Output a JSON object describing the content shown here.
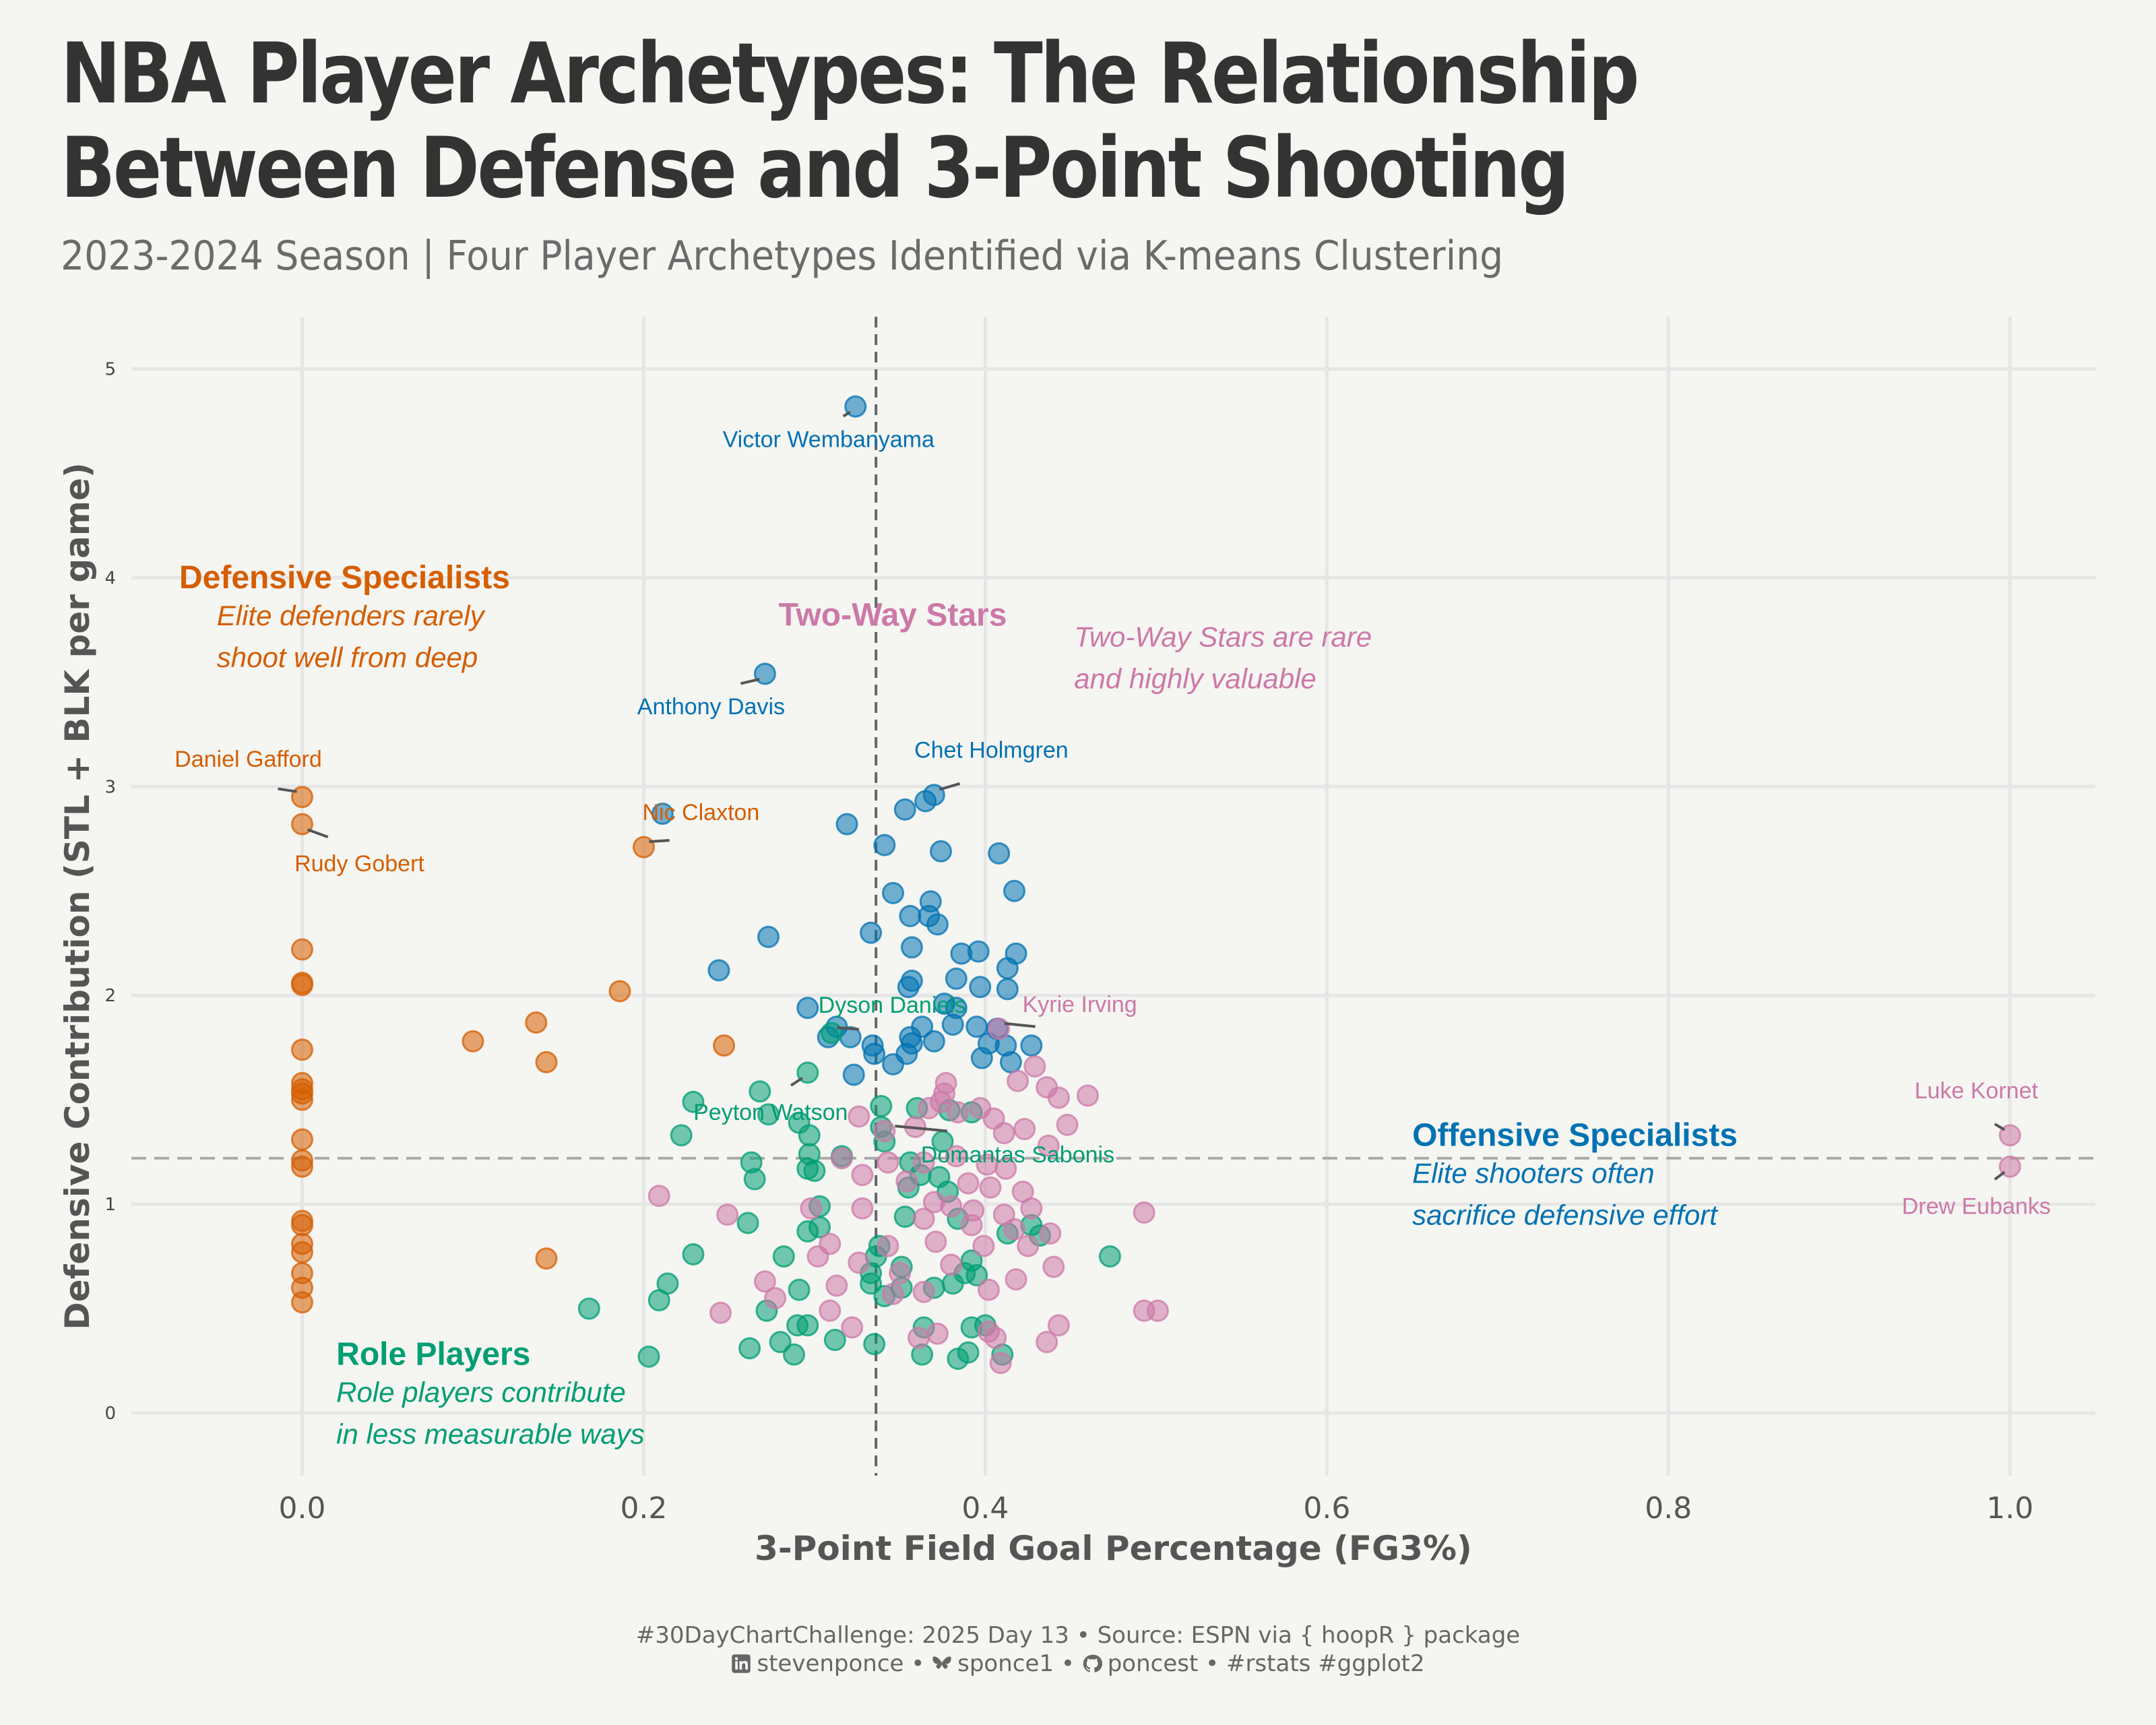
{
  "title": "NBA Player Archetypes: The Relationship Between Defense and 3-Point Shooting",
  "subtitle": "2023-2024 Season | Four Player Archetypes Identified via K-means Clustering",
  "caption": {
    "line1": "#30DayChartChallenge: 2025 Day 13 • Source: ESPN via { hoopR } package",
    "linkedin": "stevenponce",
    "bluesky": "sponce1",
    "github": "poncest",
    "tags": "#rstats #ggplot2",
    "separator": " • "
  },
  "colors": {
    "background": "#f5f5f2",
    "Defensive Specialists": "#d55e00",
    "Two-Way Stars": "#cc79a7",
    "Offensive Specialists": "#0072b2",
    "Role Players": "#009e73",
    "grid": "#e6e6e6",
    "reference_line": "#666666"
  },
  "chart_data": {
    "type": "scatter",
    "xlabel": "3-Point Field Goal Percentage (FG3%)",
    "ylabel": "Defensive Contribution (STL + BLK per game)",
    "xlim": [
      -0.1,
      1.05
    ],
    "ylim": [
      -0.3,
      5.25
    ],
    "x_ticks": [
      "0.0",
      "0.2",
      "0.4",
      "0.6",
      "0.8",
      "1.0"
    ],
    "y_ticks": [
      "0",
      "1",
      "2",
      "3",
      "4",
      "5"
    ],
    "x_tick_values": [
      0,
      0.2,
      0.4,
      0.6,
      0.8,
      1.0
    ],
    "y_tick_values": [
      0,
      1,
      2,
      3,
      4,
      5
    ],
    "grid": true,
    "legend": "none",
    "reference_lines": [
      {
        "axis": "x",
        "value": 0.336,
        "style": "dashed"
      },
      {
        "axis": "y",
        "value": 1.22,
        "style": "dashed"
      }
    ],
    "cluster_labels": [
      {
        "cluster": "Defensive Specialists",
        "title": "Defensive Specialists",
        "note1": "Elite defenders rarely",
        "note2": "shoot well from deep"
      },
      {
        "cluster": "Two-Way Stars",
        "title": "Two-Way Stars",
        "note1": "Two-Way Stars are rare",
        "note2": "and highly valuable"
      },
      {
        "cluster": "Offensive Specialists",
        "title": "Offensive Specialists",
        "note1": "Elite shooters often",
        "note2": "sacrifice defensive effort"
      },
      {
        "cluster": "Role Players",
        "title": "Role Players",
        "note1": "Role players contribute",
        "note2": "in less measurable ways"
      }
    ],
    "player_labels": [
      {
        "name": "Victor Wembanyama",
        "x": 0.324,
        "y": 4.82,
        "cluster": "Offensive Specialists"
      },
      {
        "name": "Anthony Davis",
        "x": 0.271,
        "y": 3.54,
        "cluster": "Offensive Specialists"
      },
      {
        "name": "Chet Holmgren",
        "x": 0.37,
        "y": 2.96,
        "cluster": "Offensive Specialists"
      },
      {
        "name": "Daniel Gafford",
        "x": 0.0,
        "y": 2.95,
        "cluster": "Defensive Specialists"
      },
      {
        "name": "Rudy Gobert",
        "x": 0.0,
        "y": 2.82,
        "cluster": "Defensive Specialists"
      },
      {
        "name": "Nic Claxton",
        "x": 0.2,
        "y": 2.71,
        "cluster": "Defensive Specialists"
      },
      {
        "name": "Dyson Daniels",
        "x": 0.31,
        "y": 1.82,
        "cluster": "Role Players"
      },
      {
        "name": "Kyrie Irving",
        "x": 0.408,
        "y": 1.84,
        "cluster": "Two-Way Stars"
      },
      {
        "name": "Peyton Watson",
        "x": 0.296,
        "y": 1.63,
        "cluster": "Role Players"
      },
      {
        "name": "Domantas Sabonis",
        "x": 0.344,
        "y": 1.4,
        "cluster": "Role Players"
      },
      {
        "name": "Luke Kornet",
        "x": 1.0,
        "y": 1.33,
        "cluster": "Two-Way Stars"
      },
      {
        "name": "Drew Eubanks",
        "x": 1.0,
        "y": 1.18,
        "cluster": "Two-Way Stars"
      }
    ],
    "series": [
      {
        "name": "Defensive Specialists",
        "points": [
          [
            0,
            2.95
          ],
          [
            0,
            2.82
          ],
          [
            0.2,
            2.71
          ],
          [
            0,
            2.22
          ],
          [
            0,
            2.06
          ],
          [
            0,
            2.05
          ],
          [
            0.186,
            2.02
          ],
          [
            0.137,
            1.87
          ],
          [
            0.1,
            1.78
          ],
          [
            0.247,
            1.76
          ],
          [
            0,
            1.74
          ],
          [
            0.143,
            1.68
          ],
          [
            0,
            1.58
          ],
          [
            0,
            1.55
          ],
          [
            0,
            1.53
          ],
          [
            0,
            1.5
          ],
          [
            0,
            1.31
          ],
          [
            0,
            1.21
          ],
          [
            0,
            1.18
          ],
          [
            0,
            0.92
          ],
          [
            0,
            0.9
          ],
          [
            0,
            0.81
          ],
          [
            0,
            0.77
          ],
          [
            0.143,
            0.74
          ],
          [
            0,
            0.67
          ],
          [
            0,
            0.6
          ],
          [
            0,
            0.53
          ]
        ]
      },
      {
        "name": "Offensive Specialists",
        "points": [
          [
            0.324,
            4.82
          ],
          [
            0.271,
            3.54
          ],
          [
            0.211,
            2.87
          ],
          [
            0.37,
            2.96
          ],
          [
            0.353,
            2.89
          ],
          [
            0.365,
            2.93
          ],
          [
            0.319,
            2.82
          ],
          [
            0.341,
            2.72
          ],
          [
            0.374,
            2.69
          ],
          [
            0.408,
            2.68
          ],
          [
            0.417,
            2.5
          ],
          [
            0.346,
            2.49
          ],
          [
            0.368,
            2.45
          ],
          [
            0.356,
            2.38
          ],
          [
            0.367,
            2.38
          ],
          [
            0.372,
            2.34
          ],
          [
            0.333,
            2.3
          ],
          [
            0.273,
            2.28
          ],
          [
            0.357,
            2.23
          ],
          [
            0.386,
            2.2
          ],
          [
            0.396,
            2.21
          ],
          [
            0.418,
            2.2
          ],
          [
            0.413,
            2.13
          ],
          [
            0.244,
            2.12
          ],
          [
            0.357,
            2.07
          ],
          [
            0.383,
            2.08
          ],
          [
            0.355,
            2.04
          ],
          [
            0.397,
            2.04
          ],
          [
            0.413,
            2.03
          ],
          [
            0.296,
            1.94
          ],
          [
            0.376,
            1.96
          ],
          [
            0.383,
            1.94
          ],
          [
            0.313,
            1.85
          ],
          [
            0.363,
            1.85
          ],
          [
            0.381,
            1.86
          ],
          [
            0.395,
            1.85
          ],
          [
            0.407,
            1.84
          ],
          [
            0.308,
            1.8
          ],
          [
            0.321,
            1.8
          ],
          [
            0.356,
            1.8
          ],
          [
            0.357,
            1.77
          ],
          [
            0.37,
            1.78
          ],
          [
            0.402,
            1.77
          ],
          [
            0.334,
            1.76
          ],
          [
            0.412,
            1.76
          ],
          [
            0.427,
            1.76
          ],
          [
            0.335,
            1.72
          ],
          [
            0.354,
            1.72
          ],
          [
            0.398,
            1.7
          ],
          [
            0.346,
            1.67
          ],
          [
            0.415,
            1.68
          ],
          [
            0.323,
            1.62
          ]
        ]
      },
      {
        "name": "Role Players",
        "points": [
          [
            0.31,
            1.82
          ],
          [
            0.296,
            1.63
          ],
          [
            0.268,
            1.54
          ],
          [
            0.229,
            1.49
          ],
          [
            0.339,
            1.47
          ],
          [
            0.36,
            1.46
          ],
          [
            0.379,
            1.45
          ],
          [
            0.392,
            1.44
          ],
          [
            0.273,
            1.43
          ],
          [
            0.291,
            1.39
          ],
          [
            0.339,
            1.37
          ],
          [
            0.297,
            1.33
          ],
          [
            0.222,
            1.33
          ],
          [
            0.341,
            1.3
          ],
          [
            0.375,
            1.3
          ],
          [
            0.297,
            1.24
          ],
          [
            0.316,
            1.23
          ],
          [
            0.356,
            1.2
          ],
          [
            0.263,
            1.2
          ],
          [
            0.296,
            1.17
          ],
          [
            0.3,
            1.16
          ],
          [
            0.362,
            1.14
          ],
          [
            0.373,
            1.13
          ],
          [
            0.265,
            1.12
          ],
          [
            0.355,
            1.08
          ],
          [
            0.378,
            1.06
          ],
          [
            0.303,
            0.99
          ],
          [
            0.353,
            0.94
          ],
          [
            0.384,
            0.93
          ],
          [
            0.427,
            0.9
          ],
          [
            0.303,
            0.89
          ],
          [
            0.296,
            0.87
          ],
          [
            0.261,
            0.91
          ],
          [
            0.338,
            0.8
          ],
          [
            0.413,
            0.86
          ],
          [
            0.432,
            0.85
          ],
          [
            0.336,
            0.75
          ],
          [
            0.392,
            0.73
          ],
          [
            0.473,
            0.75
          ],
          [
            0.229,
            0.76
          ],
          [
            0.282,
            0.75
          ],
          [
            0.388,
            0.67
          ],
          [
            0.351,
            0.7
          ],
          [
            0.333,
            0.67
          ],
          [
            0.395,
            0.66
          ],
          [
            0.333,
            0.62
          ],
          [
            0.351,
            0.6
          ],
          [
            0.37,
            0.6
          ],
          [
            0.381,
            0.62
          ],
          [
            0.214,
            0.62
          ],
          [
            0.291,
            0.59
          ],
          [
            0.341,
            0.56
          ],
          [
            0.272,
            0.49
          ],
          [
            0.209,
            0.54
          ],
          [
            0.168,
            0.5
          ],
          [
            0.29,
            0.42
          ],
          [
            0.296,
            0.42
          ],
          [
            0.4,
            0.42
          ],
          [
            0.364,
            0.41
          ],
          [
            0.392,
            0.41
          ],
          [
            0.28,
            0.34
          ],
          [
            0.262,
            0.31
          ],
          [
            0.312,
            0.35
          ],
          [
            0.335,
            0.33
          ],
          [
            0.203,
            0.27
          ],
          [
            0.288,
            0.28
          ],
          [
            0.363,
            0.28
          ],
          [
            0.384,
            0.26
          ],
          [
            0.41,
            0.28
          ],
          [
            0.39,
            0.29
          ]
        ]
      },
      {
        "name": "Two-Way Stars",
        "points": [
          [
            1.0,
            1.33
          ],
          [
            1.0,
            1.18
          ],
          [
            0.408,
            1.84
          ],
          [
            0.46,
            1.52
          ],
          [
            0.429,
            1.66
          ],
          [
            0.419,
            1.59
          ],
          [
            0.436,
            1.56
          ],
          [
            0.443,
            1.51
          ],
          [
            0.376,
            1.53
          ],
          [
            0.377,
            1.58
          ],
          [
            0.374,
            1.49
          ],
          [
            0.367,
            1.46
          ],
          [
            0.384,
            1.44
          ],
          [
            0.397,
            1.46
          ],
          [
            0.405,
            1.41
          ],
          [
            0.411,
            1.34
          ],
          [
            0.423,
            1.36
          ],
          [
            0.437,
            1.28
          ],
          [
            0.448,
            1.38
          ],
          [
            0.326,
            1.42
          ],
          [
            0.341,
            1.35
          ],
          [
            0.359,
            1.37
          ],
          [
            0.316,
            1.22
          ],
          [
            0.328,
            1.14
          ],
          [
            0.343,
            1.2
          ],
          [
            0.364,
            1.2
          ],
          [
            0.383,
            1.23
          ],
          [
            0.401,
            1.19
          ],
          [
            0.412,
            1.17
          ],
          [
            0.354,
            1.11
          ],
          [
            0.39,
            1.1
          ],
          [
            0.403,
            1.08
          ],
          [
            0.422,
            1.06
          ],
          [
            0.37,
            1.01
          ],
          [
            0.38,
            0.99
          ],
          [
            0.393,
            0.97
          ],
          [
            0.411,
            0.95
          ],
          [
            0.427,
            0.98
          ],
          [
            0.298,
            0.98
          ],
          [
            0.328,
            0.98
          ],
          [
            0.364,
            0.93
          ],
          [
            0.392,
            0.9
          ],
          [
            0.417,
            0.88
          ],
          [
            0.438,
            0.86
          ],
          [
            0.209,
            1.04
          ],
          [
            0.249,
            0.95
          ],
          [
            0.309,
            0.81
          ],
          [
            0.343,
            0.8
          ],
          [
            0.371,
            0.82
          ],
          [
            0.399,
            0.8
          ],
          [
            0.425,
            0.8
          ],
          [
            0.44,
            0.7
          ],
          [
            0.493,
            0.96
          ],
          [
            0.302,
            0.75
          ],
          [
            0.326,
            0.72
          ],
          [
            0.35,
            0.67
          ],
          [
            0.38,
            0.71
          ],
          [
            0.418,
            0.64
          ],
          [
            0.271,
            0.63
          ],
          [
            0.313,
            0.61
          ],
          [
            0.346,
            0.57
          ],
          [
            0.364,
            0.58
          ],
          [
            0.402,
            0.59
          ],
          [
            0.277,
            0.55
          ],
          [
            0.245,
            0.48
          ],
          [
            0.309,
            0.49
          ],
          [
            0.493,
            0.49
          ],
          [
            0.501,
            0.49
          ],
          [
            0.443,
            0.42
          ],
          [
            0.402,
            0.39
          ],
          [
            0.406,
            0.36
          ],
          [
            0.372,
            0.38
          ],
          [
            0.361,
            0.36
          ],
          [
            0.436,
            0.34
          ],
          [
            0.322,
            0.41
          ],
          [
            0.409,
            0.24
          ]
        ]
      }
    ]
  }
}
